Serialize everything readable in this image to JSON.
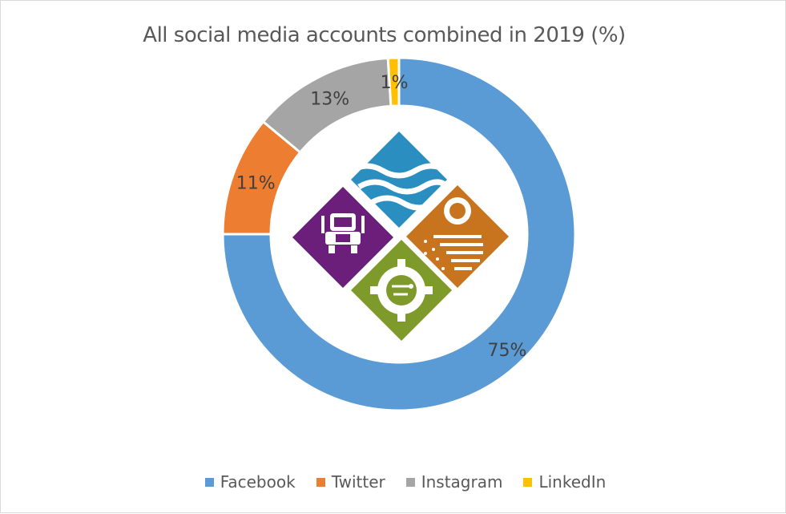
{
  "chart_data": {
    "type": "pie",
    "title": "All social media accounts combined in 2019 (%)",
    "categories": [
      "Facebook",
      "Twitter",
      "Instagram",
      "LinkedIn"
    ],
    "values": [
      75,
      11,
      13,
      1
    ],
    "data_labels": [
      "75%",
      "11%",
      "13%",
      "1%"
    ],
    "colors": [
      "#5b9bd5",
      "#ed7d31",
      "#a5a5a5",
      "#ffc000"
    ],
    "legend_position": "bottom",
    "style": "doughnut"
  },
  "center_logo": {
    "icon_names": [
      "water-waves-icon",
      "semi-truck-icon",
      "mexico-usa-flag-icon",
      "gear-circuit-icon"
    ],
    "colors": [
      "#2a8fc0",
      "#6b1f7b",
      "#c8741e",
      "#7d9a2a"
    ]
  }
}
